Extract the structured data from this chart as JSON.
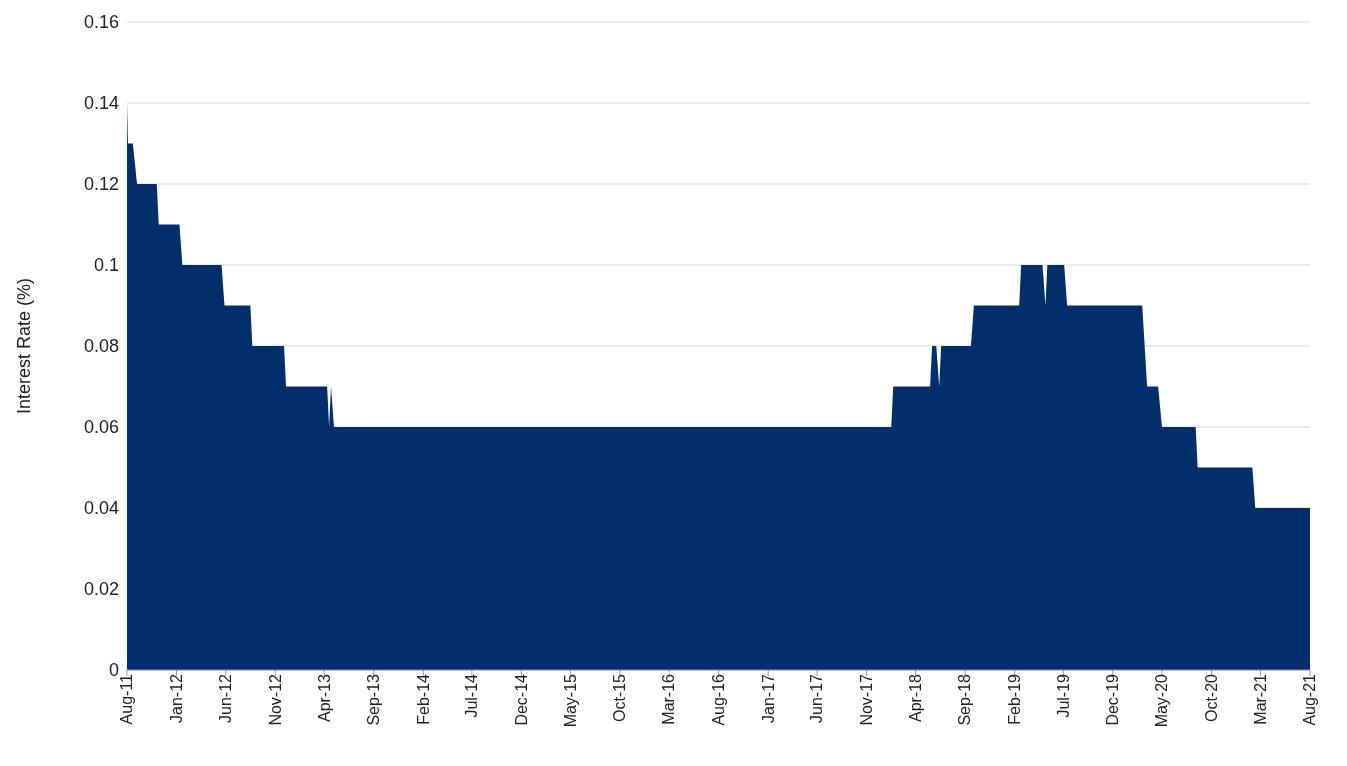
{
  "chart_data": {
    "type": "area",
    "ylabel": "Interest Rate (%)",
    "x": [
      "2011-08-01",
      "2011-08-04",
      "2011-08-19",
      "2011-09-01",
      "2011-11-01",
      "2011-11-07",
      "2012-01-10",
      "2012-01-19",
      "2012-05-19",
      "2012-05-28",
      "2012-08-16",
      "2012-08-22",
      "2012-11-28",
      "2012-12-04",
      "2013-04-10",
      "2013-04-16",
      "2013-04-22",
      "2013-05-01",
      "2018-01-16",
      "2018-01-22",
      "2018-05-16",
      "2018-05-22",
      "2018-06-04",
      "2018-06-13",
      "2018-06-19",
      "2018-09-19",
      "2018-09-28",
      "2019-02-15",
      "2019-02-21",
      "2019-04-28",
      "2019-05-07",
      "2019-05-13",
      "2019-07-04",
      "2019-07-13",
      "2020-03-01",
      "2020-03-16",
      "2020-04-19",
      "2020-05-01",
      "2020-08-13",
      "2020-08-19",
      "2021-02-04",
      "2021-02-13",
      "2021-08-01"
    ],
    "series": [
      {
        "color": "#002f6c",
        "values": [
          0.14,
          0.13,
          0.13,
          0.12,
          0.12,
          0.11,
          0.11,
          0.1,
          0.1,
          0.09,
          0.09,
          0.08,
          0.08,
          0.07,
          0.07,
          0.06,
          0.07,
          0.06,
          0.06,
          0.07,
          0.07,
          0.08,
          0.08,
          0.07,
          0.08,
          0.08,
          0.09,
          0.09,
          0.1,
          0.1,
          0.09,
          0.1,
          0.1,
          0.09,
          0.09,
          0.07,
          0.07,
          0.06,
          0.06,
          0.05,
          0.05,
          0.04,
          0.04
        ]
      }
    ],
    "xlim": [
      "2011-08-01",
      "2021-08-01"
    ],
    "xticks": [
      {
        "value": "2011-08",
        "label": "Aug-11"
      },
      {
        "value": "2012-01",
        "label": "Jan-12"
      },
      {
        "value": "2012-06",
        "label": "Jun-12"
      },
      {
        "value": "2012-11",
        "label": "Nov-12"
      },
      {
        "value": "2013-04",
        "label": "Apr-13"
      },
      {
        "value": "2013-09",
        "label": "Sep-13"
      },
      {
        "value": "2014-02",
        "label": "Feb-14"
      },
      {
        "value": "2014-07",
        "label": "Jul-14"
      },
      {
        "value": "2014-12",
        "label": "Dec-14"
      },
      {
        "value": "2015-05",
        "label": "May-15"
      },
      {
        "value": "2015-10",
        "label": "Oct-15"
      },
      {
        "value": "2016-03",
        "label": "Mar-16"
      },
      {
        "value": "2016-08",
        "label": "Aug-16"
      },
      {
        "value": "2017-01",
        "label": "Jan-17"
      },
      {
        "value": "2017-06",
        "label": "Jun-17"
      },
      {
        "value": "2017-11",
        "label": "Nov-17"
      },
      {
        "value": "2018-04",
        "label": "Apr-18"
      },
      {
        "value": "2018-09",
        "label": "Sep-18"
      },
      {
        "value": "2019-02",
        "label": "Feb-19"
      },
      {
        "value": "2019-07",
        "label": "Jul-19"
      },
      {
        "value": "2019-12",
        "label": "Dec-19"
      },
      {
        "value": "2020-05",
        "label": "May-20"
      },
      {
        "value": "2020-10",
        "label": "Oct-20"
      },
      {
        "value": "2021-03",
        "label": "Mar-21"
      },
      {
        "value": "2021-08",
        "label": "Aug-21"
      }
    ],
    "ylim": [
      0,
      0.16
    ],
    "yticks": [
      0,
      0.02,
      0.04,
      0.06,
      0.08,
      0.1,
      0.12,
      0.14,
      0.16
    ],
    "grid": "y",
    "legend": false
  }
}
